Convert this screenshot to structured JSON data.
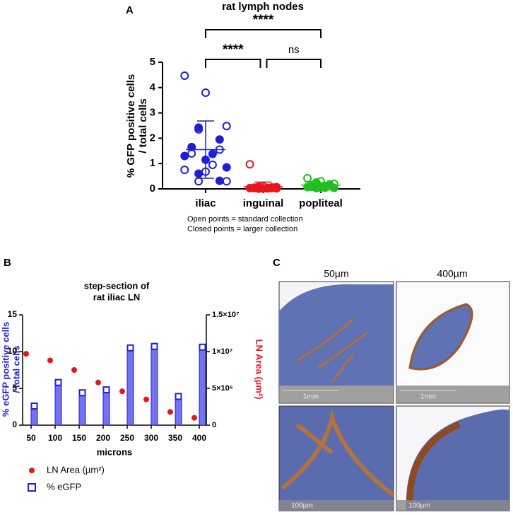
{
  "panel_labels": [
    "A",
    "B",
    "C"
  ],
  "chart_data": [
    {
      "type": "dot",
      "title": "rat lymph nodes",
      "y_label": [
        "% GFP positive cells",
        "/ total cells"
      ],
      "categories": [
        "iliac",
        "inguinal",
        "popliteal"
      ],
      "colors": [
        "#1f1fd6",
        "#e8141e",
        "#1fbf1f"
      ],
      "groups": [
        {
          "open": [
            4.47,
            3.8,
            2.48,
            2.35,
            1.55,
            1.4,
            0.95,
            0.75,
            0.68,
            0.3,
            0.3
          ],
          "closed": [
            2.42,
            1.95,
            1.65,
            1.38,
            1.3,
            1.15,
            0.85,
            0.6,
            0.32
          ],
          "mean": 1.55,
          "sd": 1.13
        },
        {
          "open": [
            0.97,
            0.1,
            0.07,
            0.05,
            0.04,
            0.03,
            0.02
          ],
          "closed": [
            0.08,
            0.06,
            0.05,
            0.04,
            0.03,
            0.02,
            0.02,
            0.01
          ],
          "mean": 0.08,
          "sd": 0.19
        },
        {
          "open": [
            0.42,
            0.3,
            0.2,
            0.15,
            0.1,
            0.08,
            0.05
          ],
          "closed": [
            0.25,
            0.18,
            0.14,
            0.1,
            0.07,
            0.05,
            0.04,
            0.03
          ],
          "mean": 0.15,
          "sd": 0.1
        }
      ],
      "ylim": [
        0,
        5
      ],
      "yticks": [
        0,
        1,
        2,
        3,
        4,
        5
      ],
      "comparisons": [
        {
          "from": 0,
          "to": 2,
          "label": "****"
        },
        {
          "from": 0,
          "to": 1,
          "label": "****"
        },
        {
          "from": 1,
          "to": 2,
          "label": "ns"
        }
      ],
      "notes": [
        "Open points = standard collection",
        "Closed points = larger collection"
      ]
    },
    {
      "type": "bar-dot",
      "title": [
        "step-section of",
        "rat iliac LN"
      ],
      "x_label": "microns",
      "y_label": [
        "% eGFP positive cells",
        "/ total cells"
      ],
      "y2_label": "LN Area (µm²)",
      "categories": [
        "50",
        "100",
        "150",
        "200",
        "250",
        "300",
        "350",
        "400"
      ],
      "series": [
        {
          "name": "LN Area (µm²)",
          "color": "#e8141e",
          "marker": "dot",
          "axis": "y2",
          "values": [
            9700000,
            8800000,
            7500000,
            5800000,
            4600000,
            3500000,
            1800000,
            1000000
          ]
        },
        {
          "name": "% eGFP",
          "color": "#1f1fd6",
          "marker": "bar",
          "values": [
            2.6,
            5.8,
            4.4,
            4.8,
            10.5,
            10.7,
            3.9,
            10.6
          ]
        }
      ],
      "ylim": [
        0,
        15
      ],
      "yticks": [
        0,
        5,
        10,
        15
      ],
      "y2lim": [
        0,
        15000000
      ],
      "y2ticks": [
        0,
        {
          "value": 5000000,
          "label": "5×10⁶"
        },
        {
          "value": 10000000,
          "label": "1×10⁷"
        },
        {
          "value": 15000000,
          "label": "1.5×10⁷"
        }
      ]
    }
  ],
  "micrographs": {
    "columns": [
      "50µm",
      "400µm"
    ],
    "scale_bars": [
      "1mm",
      "1mm",
      "100µm",
      "100µm"
    ]
  }
}
